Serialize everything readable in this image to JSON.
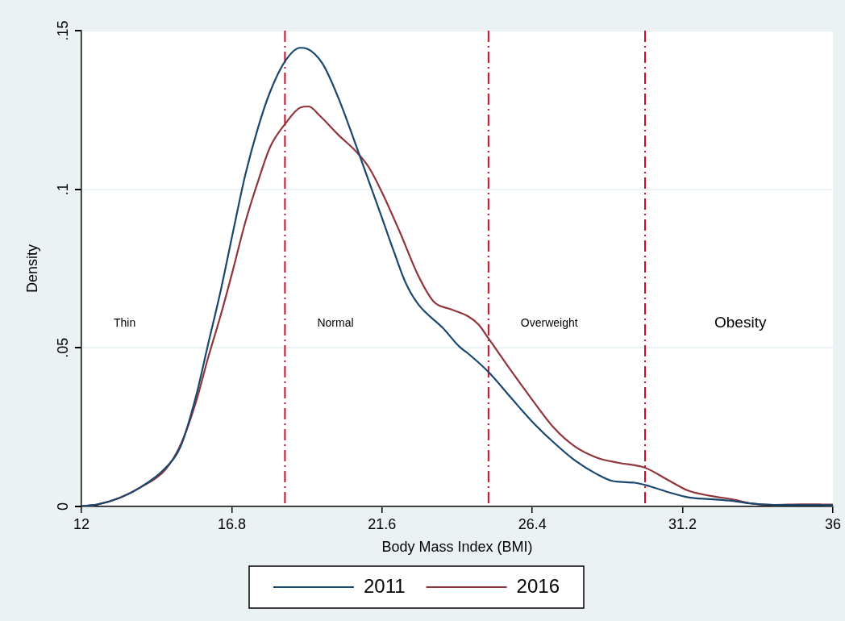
{
  "chart_data": {
    "type": "line",
    "xlabel": "Body Mass Index (BMI)",
    "ylabel": "Density",
    "xlim": [
      12,
      36
    ],
    "xticks": [
      12,
      16.8,
      21.6,
      26.4,
      31.2,
      36
    ],
    "ylim": [
      0,
      0.15
    ],
    "yticks": [
      0,
      {
        "value": 0.05,
        "label": ".05"
      },
      {
        "value": 0.1,
        "label": ".1"
      },
      {
        "value": 0.15,
        "label": ".15"
      }
    ],
    "grid": "y",
    "legend": "bottom",
    "marker": "none",
    "line_style": "solid",
    "series": [
      {
        "name": "2011",
        "color": "#1a476f",
        "x": [
          12,
          12.5,
          13.19,
          13.88,
          14.67,
          15.17,
          15.66,
          16.04,
          16.46,
          16.84,
          17.23,
          17.64,
          18.03,
          18.52,
          18.99,
          19.21,
          19.7,
          20.19,
          20.68,
          21.18,
          21.58,
          21.97,
          22.35,
          22.76,
          23.54,
          24.08,
          24.34,
          25.02,
          25.7,
          26.4,
          27.08,
          27.76,
          28.46,
          28.97,
          29.66,
          30.17,
          30.85,
          31.37,
          32.06,
          32.75,
          33.43,
          34.12,
          34.97,
          36
        ],
        "values": [
          0.0001,
          0.0006,
          0.0026,
          0.006,
          0.012,
          0.019,
          0.0348,
          0.0509,
          0.0686,
          0.0865,
          0.1044,
          0.1194,
          0.1308,
          0.1406,
          0.1446,
          0.1443,
          0.1396,
          0.1292,
          0.1163,
          0.1025,
          0.0915,
          0.0806,
          0.0706,
          0.0637,
          0.0563,
          0.0503,
          0.0483,
          0.0422,
          0.0345,
          0.0267,
          0.0202,
          0.0145,
          0.0102,
          0.008,
          0.0075,
          0.0063,
          0.0042,
          0.0029,
          0.0023,
          0.0018,
          0.0009,
          0.0005,
          0.0005,
          0.0004
        ]
      },
      {
        "name": "2016",
        "color": "#90353b",
        "x": [
          12,
          12.5,
          13.19,
          13.88,
          14.67,
          15.17,
          15.66,
          16.04,
          16.46,
          16.84,
          17.23,
          17.64,
          18.03,
          18.52,
          19.0,
          19.26,
          19.6,
          20.19,
          20.78,
          21.18,
          21.58,
          22.17,
          22.76,
          23.25,
          23.82,
          24.34,
          24.68,
          25.02,
          25.7,
          26.4,
          27.08,
          27.76,
          28.46,
          29.14,
          30.0,
          30.69,
          31.37,
          32.06,
          32.75,
          33.43,
          34.12,
          34.97,
          36
        ],
        "values": [
          0.0001,
          0.0006,
          0.0026,
          0.006,
          0.0115,
          0.0195,
          0.033,
          0.0467,
          0.0607,
          0.0746,
          0.0895,
          0.1025,
          0.1134,
          0.1208,
          0.1258,
          0.1261,
          0.1233,
          0.1173,
          0.1118,
          0.1069,
          0.0994,
          0.0865,
          0.0727,
          0.0646,
          0.0621,
          0.06,
          0.0574,
          0.0527,
          0.0431,
          0.0336,
          0.0249,
          0.0189,
          0.0154,
          0.0138,
          0.0122,
          0.0086,
          0.005,
          0.0034,
          0.0023,
          0.0009,
          0.0005,
          0.0007,
          0.0006
        ]
      }
    ],
    "ref_lines": [
      {
        "axis": "x",
        "value": 18.5,
        "color": "#c8102e",
        "line_style": "dashed"
      },
      {
        "axis": "x",
        "value": 25,
        "color": "#c8102e",
        "line_style": "dashed"
      },
      {
        "axis": "x",
        "value": 30,
        "color": "#c8102e",
        "line_style": "dashed"
      }
    ],
    "annotations": [
      "Thin",
      "Normal",
      "Overweight",
      "Obesity"
    ]
  }
}
